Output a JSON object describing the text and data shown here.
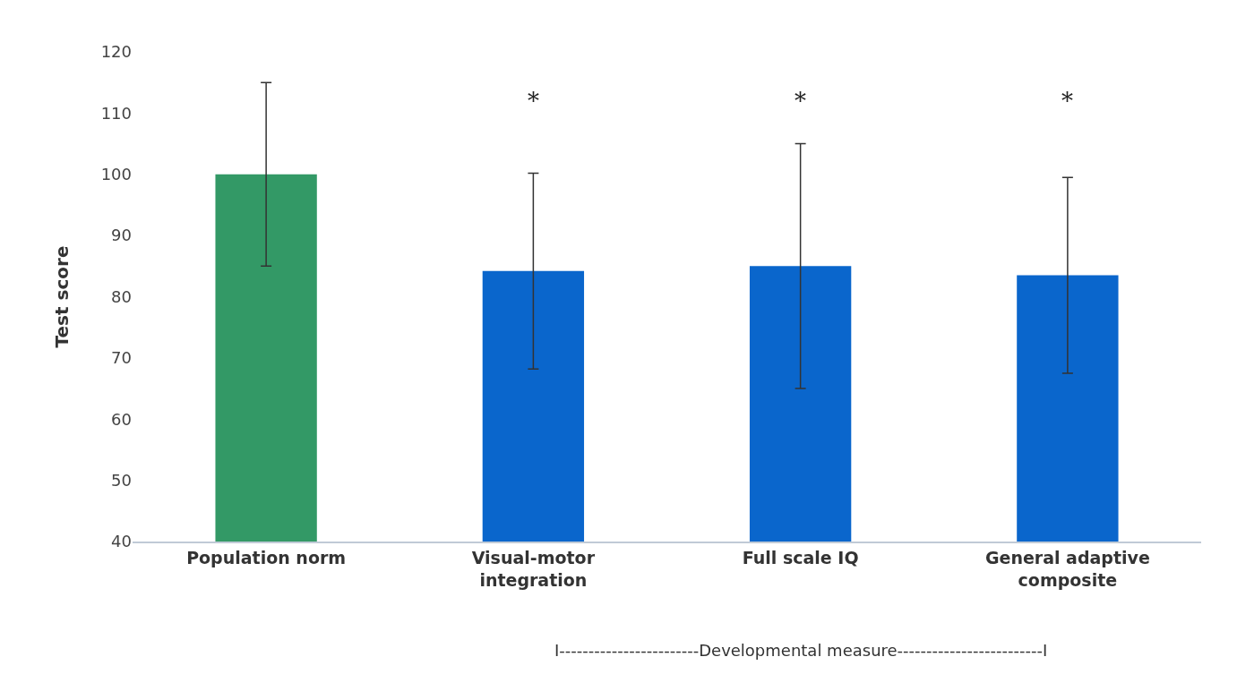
{
  "chart_data": {
    "type": "bar",
    "ylabel": "Test score",
    "categories": [
      "Population norm",
      "Visual-motor\nintegration",
      "Full scale IQ",
      "General adaptive\ncomposite"
    ],
    "values": [
      100,
      84.2,
      85,
      83.5
    ],
    "errors": [
      15,
      16,
      20,
      16
    ],
    "colors": [
      "#339966",
      "#0a66cc",
      "#0a66cc",
      "#0a66cc"
    ],
    "ylim": [
      40,
      120
    ],
    "yticks": [
      40,
      50,
      60,
      70,
      80,
      90,
      100,
      110,
      120
    ],
    "annotations": [
      "*",
      "*",
      "*",
      "I------------------------Developmental measure-------------------------I"
    ]
  }
}
